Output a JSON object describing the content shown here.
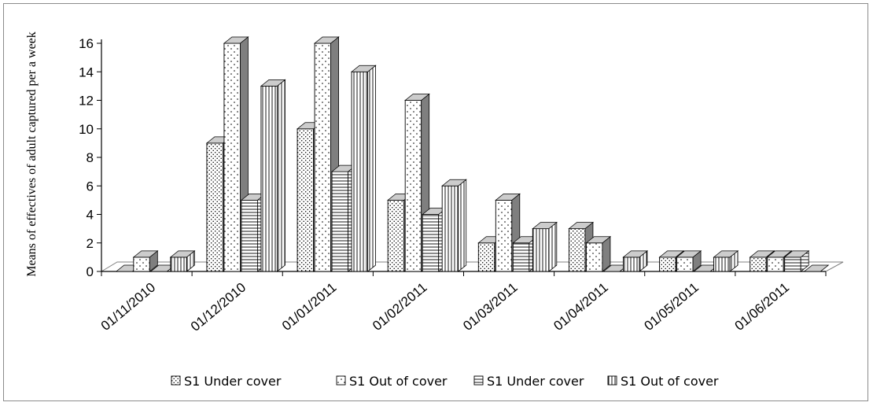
{
  "chart_data": {
    "type": "bar",
    "ylabel": "Means of effectives of adult captured per a week",
    "xlabel": "",
    "ylim": [
      0,
      16
    ],
    "yticks": [
      0,
      2,
      4,
      6,
      8,
      10,
      12,
      14,
      16
    ],
    "categories": [
      "01/11/2010",
      "01/12/2010",
      "01/01/2011",
      "01/02/2011",
      "01/03/2011",
      "01/04/2011",
      "01/05/2011",
      "01/06/2011"
    ],
    "series": [
      {
        "name": "S1 Under cover",
        "pattern": "dots-dense",
        "values": [
          0,
          9,
          10,
          5,
          2,
          3,
          1,
          1
        ]
      },
      {
        "name": "S1 Out of cover",
        "pattern": "dots-sparse",
        "values": [
          1,
          16,
          16,
          12,
          5,
          2,
          1,
          1
        ]
      },
      {
        "name": "S1 Under cover",
        "pattern": "horizontal-lines",
        "values": [
          0,
          5,
          7,
          4,
          2,
          0,
          0,
          1
        ]
      },
      {
        "name": "S1 Out of cover",
        "pattern": "vertical-lines",
        "values": [
          1,
          13,
          14,
          6,
          3,
          1,
          1,
          0
        ]
      }
    ],
    "legend_position": "bottom",
    "grid": false,
    "style": "3d-columns"
  },
  "colors": {
    "bar_fill": "#ffffff",
    "bar_stroke": "#000000",
    "bar_top": "#cccccc",
    "bar_side": "#7f7f7f",
    "axis": "#000000",
    "floor": "#808080"
  }
}
